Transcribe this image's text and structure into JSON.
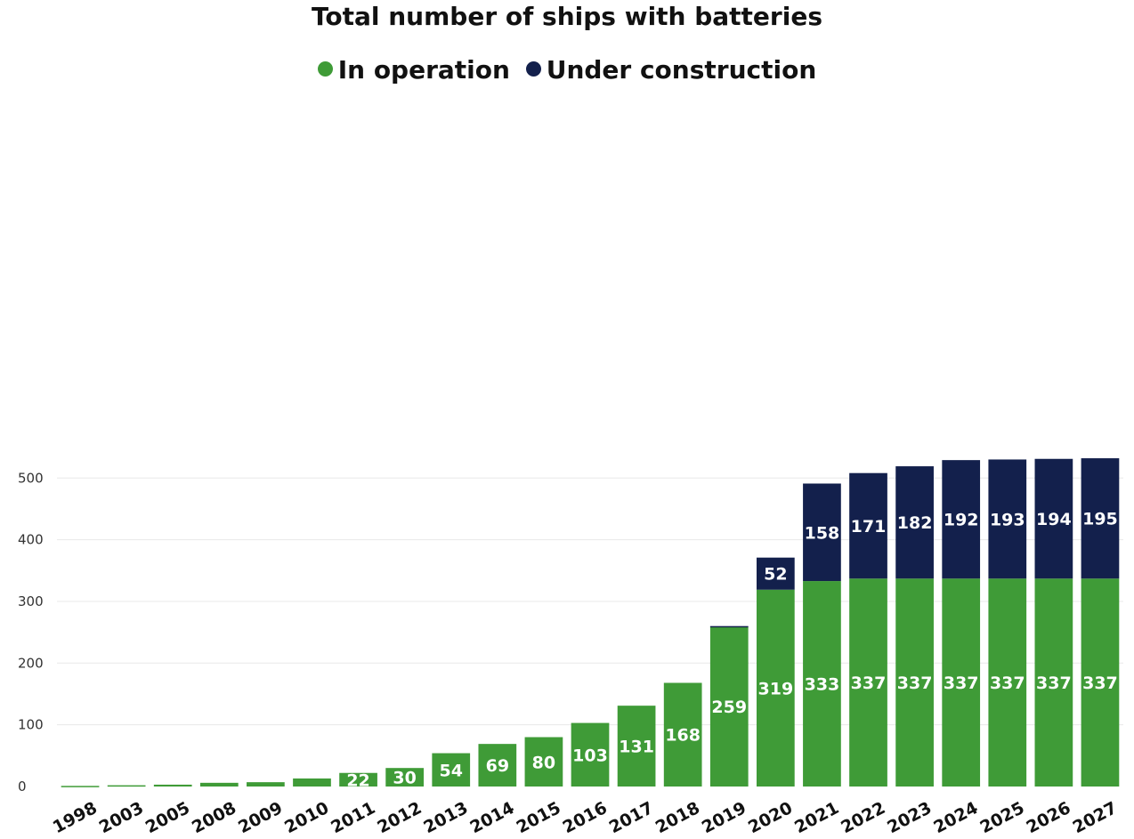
{
  "chart_data": {
    "type": "bar",
    "stacked": true,
    "title": "Total number of ships with batteries",
    "xlabel": "",
    "ylabel": "",
    "categories": [
      "1998",
      "2003",
      "2005",
      "2008",
      "2009",
      "2010",
      "2011",
      "2012",
      "2013",
      "2014",
      "2015",
      "2016",
      "2017",
      "2018",
      "2019",
      "2020",
      "2021",
      "2022",
      "2023",
      "2024",
      "2025",
      "2026",
      "2027"
    ],
    "series": [
      {
        "name": "In operation",
        "color": "#3f9b37",
        "values": [
          1,
          2,
          3,
          6,
          7,
          13,
          22,
          30,
          54,
          69,
          80,
          103,
          131,
          168,
          259,
          319,
          333,
          337,
          337,
          337,
          337,
          337,
          337
        ],
        "labels": [
          "",
          "",
          "",
          "",
          "",
          "",
          "22",
          "30",
          "54",
          "69",
          "80",
          "103",
          "131",
          "168",
          "259",
          "319",
          "333",
          "337",
          "337",
          "337",
          "337",
          "337",
          "337"
        ]
      },
      {
        "name": "Under construction",
        "color": "#13204c",
        "values": [
          0,
          0,
          0,
          0,
          0,
          0,
          0,
          0,
          0,
          0,
          0,
          0,
          0,
          0,
          1,
          52,
          158,
          171,
          182,
          192,
          193,
          194,
          195
        ],
        "labels": [
          "",
          "",
          "",
          "",
          "",
          "",
          "",
          "",
          "",
          "",
          "",
          "",
          "",
          "",
          "",
          "52",
          "158",
          "171",
          "182",
          "192",
          "193",
          "194",
          "195"
        ]
      }
    ],
    "yticks": [
      0,
      100,
      200,
      300,
      400,
      500
    ],
    "ylim": [
      0,
      540
    ],
    "grid": true,
    "legend_position": "top-center"
  }
}
